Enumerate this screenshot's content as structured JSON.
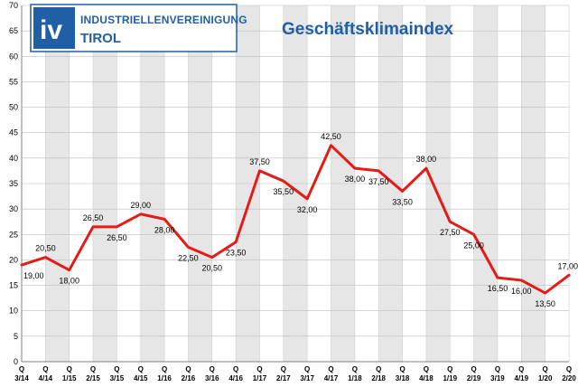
{
  "logo": {
    "mark": "iv",
    "line1": "INDUSTRIELLENVEREINIGUNG",
    "line2": "TIROL",
    "color": "#1f5fa6"
  },
  "chart_data": {
    "type": "line",
    "title": "Geschäftsklimaindex",
    "ylim": [
      0,
      70
    ],
    "yticks": [
      0,
      5,
      10,
      15,
      20,
      25,
      30,
      35,
      40,
      45,
      50,
      55,
      60,
      65,
      70
    ],
    "categories": [
      "3/14",
      "4/14",
      "1/15",
      "2/15",
      "3/15",
      "4/15",
      "1/16",
      "2/16",
      "3/16",
      "4/16",
      "1/17",
      "2/17",
      "3/17",
      "4/17",
      "1/18",
      "2/18",
      "3/18",
      "4/18",
      "1/19",
      "2/19",
      "3/19",
      "4/19",
      "1/20",
      "2/20"
    ],
    "category_prefix": "Q",
    "series": [
      {
        "values": [
          19.0,
          20.5,
          18.0,
          26.5,
          26.5,
          29.0,
          28.0,
          22.5,
          20.5,
          23.5,
          37.5,
          35.5,
          32.0,
          42.5,
          38.0,
          37.5,
          33.5,
          38.0,
          27.5,
          25.0,
          16.5,
          16.0,
          13.5,
          17.0
        ],
        "labels": [
          "19,00",
          "20,50",
          "18,00",
          "26,50",
          "26,50",
          "29,00",
          "28,00",
          "22,50",
          "20,50",
          "23,50",
          "37,50",
          "35,50",
          "32,00",
          "42,50",
          "38,00",
          "37,50",
          "33,50",
          "38,00",
          "27,50",
          "25,00",
          "16,50",
          "16,00",
          "13,50",
          "17,00"
        ],
        "color": "#e41b17"
      }
    ],
    "grid": true,
    "background_stripes": [
      "#ffffff",
      "#e6e6e6"
    ]
  }
}
